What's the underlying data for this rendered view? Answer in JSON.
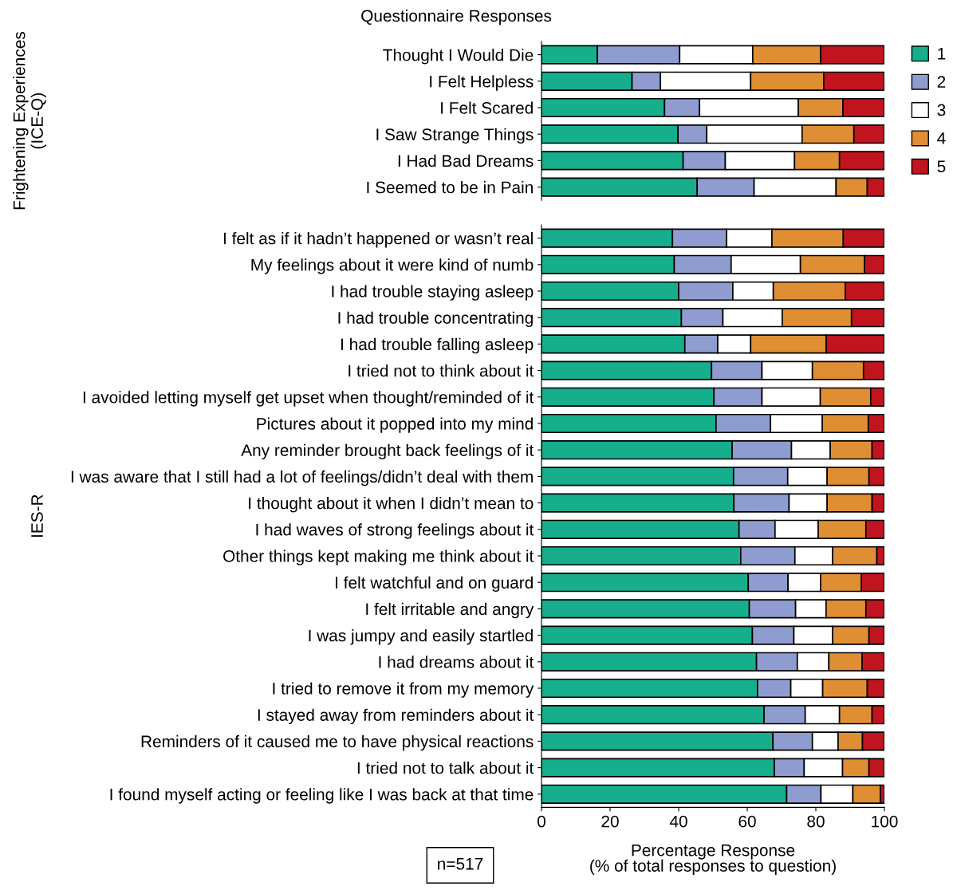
{
  "chart_data": [
    {
      "type": "bar",
      "orientation": "horizontal",
      "stacked": true,
      "title": "Questionnaire Responses",
      "ylabel": "Frightening Experiences\n(ICE-Q)",
      "legend": "right",
      "tick_labels": "y",
      "xlim": [
        0,
        100
      ],
      "xticks": [
        0,
        20,
        40,
        60,
        80,
        100
      ],
      "categories": [
        "Thought I Would Die",
        "I Felt Helpless",
        "I Felt Scared",
        "I Saw Strange Things",
        "I Had Bad Dreams",
        "I Seemed to be in Pain"
      ],
      "series": [
        {
          "name": "1",
          "color": "#17ae8c",
          "values": [
            16.3,
            26.4,
            35.9,
            39.8,
            41.3,
            45.4
          ]
        },
        {
          "name": "2",
          "color": "#8f9ccf",
          "values": [
            24.0,
            8.3,
            10.2,
            8.4,
            12.3,
            16.6
          ]
        },
        {
          "name": "3",
          "color": "#ffffff",
          "values": [
            21.3,
            26.3,
            28.8,
            27.8,
            20.2,
            23.9
          ]
        },
        {
          "name": "4",
          "color": "#e08e34",
          "values": [
            19.8,
            21.3,
            13.0,
            15.1,
            13.1,
            9.1
          ]
        },
        {
          "name": "5",
          "color": "#c0141f",
          "values": [
            18.6,
            17.7,
            12.1,
            8.9,
            13.1,
            5.0
          ]
        }
      ]
    },
    {
      "type": "bar",
      "orientation": "horizontal",
      "stacked": true,
      "ylabel": "IES-R",
      "xlabel": "Percentage Response\n(% of total responses to question)",
      "annotations": [
        "n=517"
      ],
      "xlim": [
        0,
        100
      ],
      "xticks": [
        0,
        20,
        40,
        60,
        80,
        100
      ],
      "categories": [
        "I felt as if it hadn’t happened or wasn’t real",
        "My feelings about it were kind of numb",
        "I had trouble staying asleep",
        "I had trouble concentrating",
        "I had trouble falling asleep",
        "I tried not to think about it",
        "I avoided letting myself get upset when thought/reminded of it",
        "Pictures about it popped into my mind",
        "Any reminder brought back feelings of it",
        "I was aware that I still had a lot of feelings/didn’t deal with them",
        "I thought about it when I didn’t mean to",
        "I had waves of strong feelings about it",
        "Other things kept making me think about it",
        "I felt watchful and on guard",
        "I felt irritable and angry",
        "I was jumpy and easily startled",
        "I had dreams about it",
        "I tried to remove it from my memory",
        "I stayed away from reminders about it",
        "Reminders of it caused me to have physical reactions",
        "I tried not to talk about it",
        "I found myself acting or feeling like I was back at that time"
      ],
      "series": [
        {
          "color": "#17ae8c",
          "values": [
            38.2,
            38.7,
            40.0,
            40.8,
            41.8,
            49.6,
            50.3,
            50.9,
            55.6,
            56.0,
            56.1,
            57.6,
            58.1,
            60.3,
            60.6,
            61.5,
            62.7,
            63.0,
            64.9,
            67.5,
            67.9,
            71.5
          ]
        },
        {
          "color": "#8f9ccf",
          "values": [
            15.8,
            16.6,
            15.8,
            12.1,
            9.6,
            14.7,
            14.0,
            15.9,
            17.3,
            15.8,
            16.1,
            10.5,
            15.8,
            11.6,
            13.5,
            12.1,
            11.9,
            9.7,
            12.0,
            11.5,
            8.7,
            10.0
          ]
        },
        {
          "color": "#ffffff",
          "values": [
            13.2,
            20.2,
            11.8,
            17.3,
            9.6,
            14.7,
            17.0,
            15.1,
            11.3,
            11.5,
            11.1,
            12.6,
            11.0,
            9.5,
            8.9,
            11.3,
            9.2,
            9.3,
            10.0,
            7.5,
            11.2,
            9.3
          ]
        },
        {
          "color": "#e08e34",
          "values": [
            20.8,
            18.7,
            21.0,
            20.2,
            22.0,
            14.9,
            14.7,
            13.4,
            12.2,
            12.2,
            13.1,
            13.9,
            12.9,
            11.9,
            11.6,
            10.6,
            9.7,
            13.0,
            9.5,
            7.1,
            7.7,
            8.0
          ]
        },
        {
          "color": "#c0141f",
          "values": [
            12.0,
            5.8,
            11.4,
            9.6,
            17.0,
            6.1,
            4.0,
            4.7,
            3.6,
            4.5,
            3.6,
            5.4,
            2.2,
            6.7,
            5.4,
            4.5,
            6.5,
            5.0,
            3.6,
            6.4,
            4.5,
            1.2
          ]
        }
      ]
    }
  ]
}
